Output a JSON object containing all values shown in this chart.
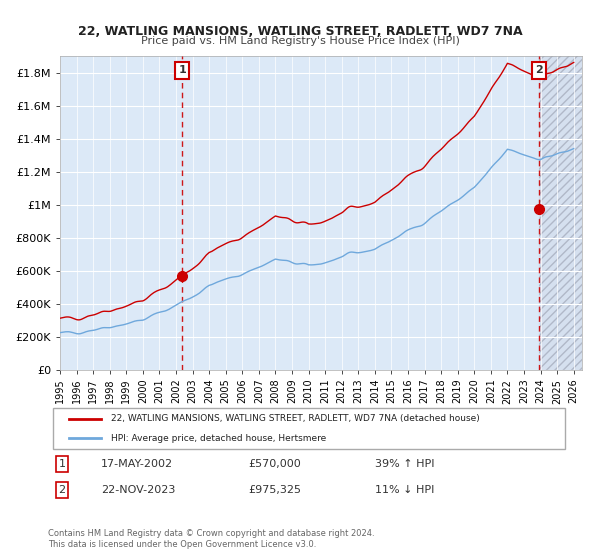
{
  "title": "22, WATLING MANSIONS, WATLING STREET, RADLETT, WD7 7NA",
  "subtitle": "Price paid vs. HM Land Registry's House Price Index (HPI)",
  "hpi_color": "#6fa8dc",
  "property_color": "#cc0000",
  "point_color": "#cc0000",
  "bg_color": "#dce9f7",
  "plot_bg": "#dce9f7",
  "grid_color": "#ffffff",
  "hatch_color": "#c0c0d0",
  "xlabel_color": "#333333",
  "sale1_date": "17-MAY-2002",
  "sale1_price": 570000,
  "sale1_label": "1",
  "sale1_year": 2002.37,
  "sale2_date": "22-NOV-2023",
  "sale2_price": 975325,
  "sale2_label": "2",
  "sale2_year": 2023.89,
  "legend_property": "22, WATLING MANSIONS, WATLING STREET, RADLETT, WD7 7NA (detached house)",
  "legend_hpi": "HPI: Average price, detached house, Hertsmere",
  "footer1": "Contains HM Land Registry data © Crown copyright and database right 2024.",
  "footer2": "This data is licensed under the Open Government Licence v3.0.",
  "table_row1": [
    "1",
    "17-MAY-2002",
    "£570,000",
    "39% ↑ HPI"
  ],
  "table_row2": [
    "2",
    "22-NOV-2023",
    "£975,325",
    "11% ↓ HPI"
  ],
  "ylim": [
    0,
    1900000
  ],
  "xlim_start": 1995.0,
  "xlim_end": 2026.5
}
